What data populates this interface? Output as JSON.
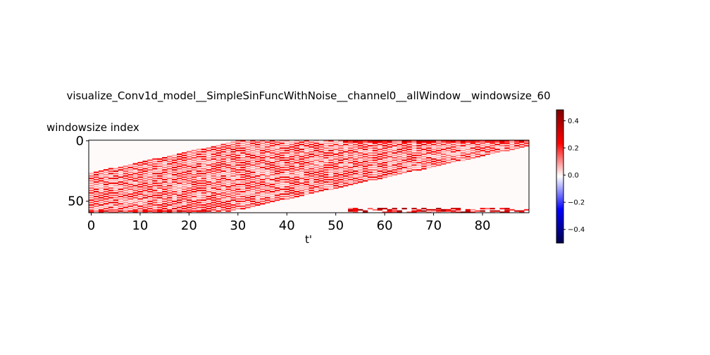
{
  "chart_data": [
    {
      "type": "heatmap",
      "title": "visualize_Conv1d_model__SimpleSinFuncWithNoise__channel0__allWindow__windowsize_60",
      "xlabel": "t'",
      "ylabel": "windowsize index",
      "xlim": [
        0,
        90
      ],
      "ylim": [
        0,
        60
      ],
      "x_ticks": [
        "0",
        "10",
        "20",
        "30",
        "40",
        "50",
        "60",
        "70",
        "80"
      ],
      "y_ticks": [
        "0",
        "50"
      ],
      "colormap": "seismic",
      "colors": {
        "low": "#00004c",
        "mid": "#ffffff",
        "high": "#800000",
        "background": "#fffafa"
      },
      "color_range": [
        -0.5,
        0.48
      ],
      "features": [
        {
          "kind": "diagonal_bands",
          "t_start": 0,
          "t_end": 62,
          "rows_from": 55,
          "rows_to": 0,
          "value_range": [
            0.05,
            0.3
          ]
        },
        {
          "kind": "row_activity",
          "row": 0,
          "t_start": 52,
          "t_end": 90,
          "value_range": [
            0.1,
            0.45
          ]
        },
        {
          "kind": "row_activity",
          "row": 58,
          "t_start": 0,
          "t_end": 25,
          "value_range": [
            0.1,
            0.35
          ]
        },
        {
          "kind": "bottom_block",
          "rows_from": 56,
          "rows_to": 60,
          "t_start": 53,
          "t_end": 90,
          "value_range": [
            0.1,
            0.45
          ]
        }
      ]
    },
    {
      "type": "colorbar",
      "ticks": [
        "0.4",
        "0.2",
        "0.0",
        "−0.2",
        "−0.4"
      ],
      "tick_values": [
        0.4,
        0.2,
        0.0,
        -0.2,
        -0.4
      ],
      "range": [
        -0.5,
        0.48
      ]
    }
  ]
}
